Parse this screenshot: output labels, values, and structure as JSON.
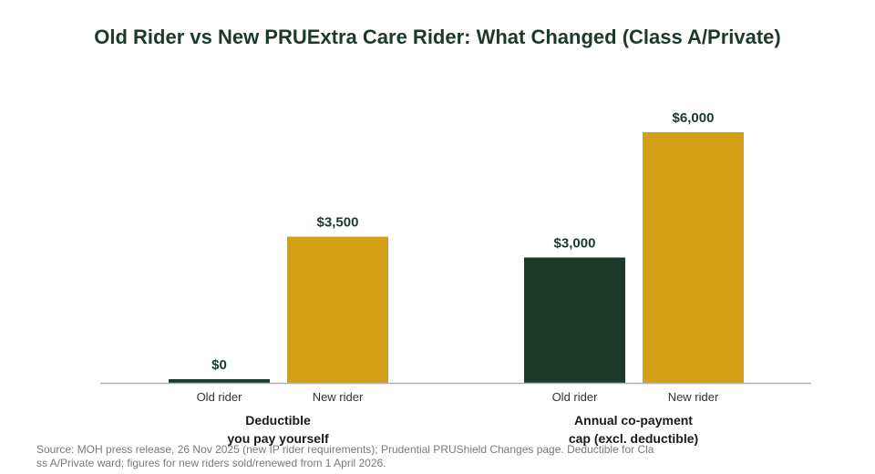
{
  "chart_data": {
    "type": "bar",
    "title": "Old Rider vs New PRUExtra Care Rider: What Changed (Class A/Private)",
    "groups": [
      {
        "label": [
          "Deductible",
          "you pay yourself"
        ],
        "bars": [
          {
            "label": "Old rider",
            "value": 0,
            "display": "$0"
          },
          {
            "label": "New rider",
            "value": 3500,
            "display": "$3,500"
          }
        ]
      },
      {
        "label": [
          "Annual co-payment",
          "cap (excl. deductible)"
        ],
        "bars": [
          {
            "label": "Old rider",
            "value": 3000,
            "display": "$3,000"
          },
          {
            "label": "New rider",
            "value": 6000,
            "display": "$6,000"
          }
        ]
      }
    ],
    "ylim": [
      0,
      6000
    ],
    "grid": false,
    "legend": "none",
    "colors": {
      "Old rider": "#1c3a2a",
      "New rider": "#d4a017"
    },
    "baseline_color": "#b0b0b0",
    "label_color": "#1c3a2a"
  },
  "source_note": "Source: MOH press release, 26 Nov 2025 (new IP rider requirements); Prudential PRUShield Changes page. Deductible for Class A/Private ward; figures for new riders sold/renewed from 1 April 2026."
}
